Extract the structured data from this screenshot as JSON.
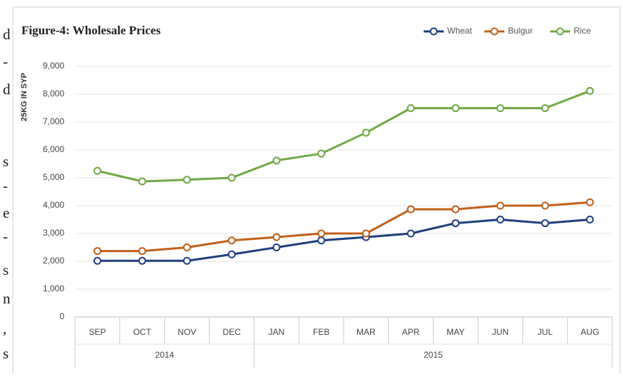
{
  "margin_text": [
    "d",
    "-",
    "d",
    "s",
    "-",
    "e",
    "-",
    "s",
    "n",
    ",",
    "s"
  ],
  "chart_data": {
    "type": "line",
    "title": "Figure-4: Wholesale Prices",
    "y_label": "25KG IN SYP",
    "categories": [
      "SEP",
      "OCT",
      "NOV",
      "DEC",
      "JAN",
      "FEB",
      "MAR",
      "APR",
      "MAY",
      "JUN",
      "JUL",
      "AUG"
    ],
    "groups": [
      {
        "label": "2014",
        "start": 0,
        "end": 3
      },
      {
        "label": "2015",
        "start": 4,
        "end": 11
      }
    ],
    "series": [
      {
        "name": "Wheat",
        "color": "#1f3f7f",
        "values": [
          2020,
          2020,
          2020,
          2250,
          2500,
          2750,
          2870,
          3000,
          3370,
          3500,
          3370,
          3500
        ]
      },
      {
        "name": "Bulgur",
        "color": "#c0601a",
        "values": [
          2370,
          2370,
          2500,
          2750,
          2870,
          3000,
          3000,
          3870,
          3870,
          4000,
          4000,
          4120
        ]
      },
      {
        "name": "Rice",
        "color": "#70a845",
        "values": [
          5250,
          4870,
          4930,
          5000,
          5620,
          5870,
          6620,
          7500,
          7500,
          7500,
          7500,
          8120
        ]
      }
    ],
    "ylim": [
      0,
      9000
    ],
    "yticks": [
      0,
      {
        "value": 1000,
        "label": "1,000"
      },
      {
        "value": 2000,
        "label": "2,000"
      },
      {
        "value": 3000,
        "label": "3,000"
      },
      {
        "value": 4000,
        "label": "4,000"
      },
      {
        "value": 5000,
        "label": "5,000"
      },
      {
        "value": 6000,
        "label": "6,000"
      },
      {
        "value": 7000,
        "label": "7,000"
      },
      {
        "value": 8000,
        "label": "8,000"
      },
      {
        "value": 9000,
        "label": "9,000"
      }
    ],
    "grid": true,
    "legend": "top-right"
  }
}
